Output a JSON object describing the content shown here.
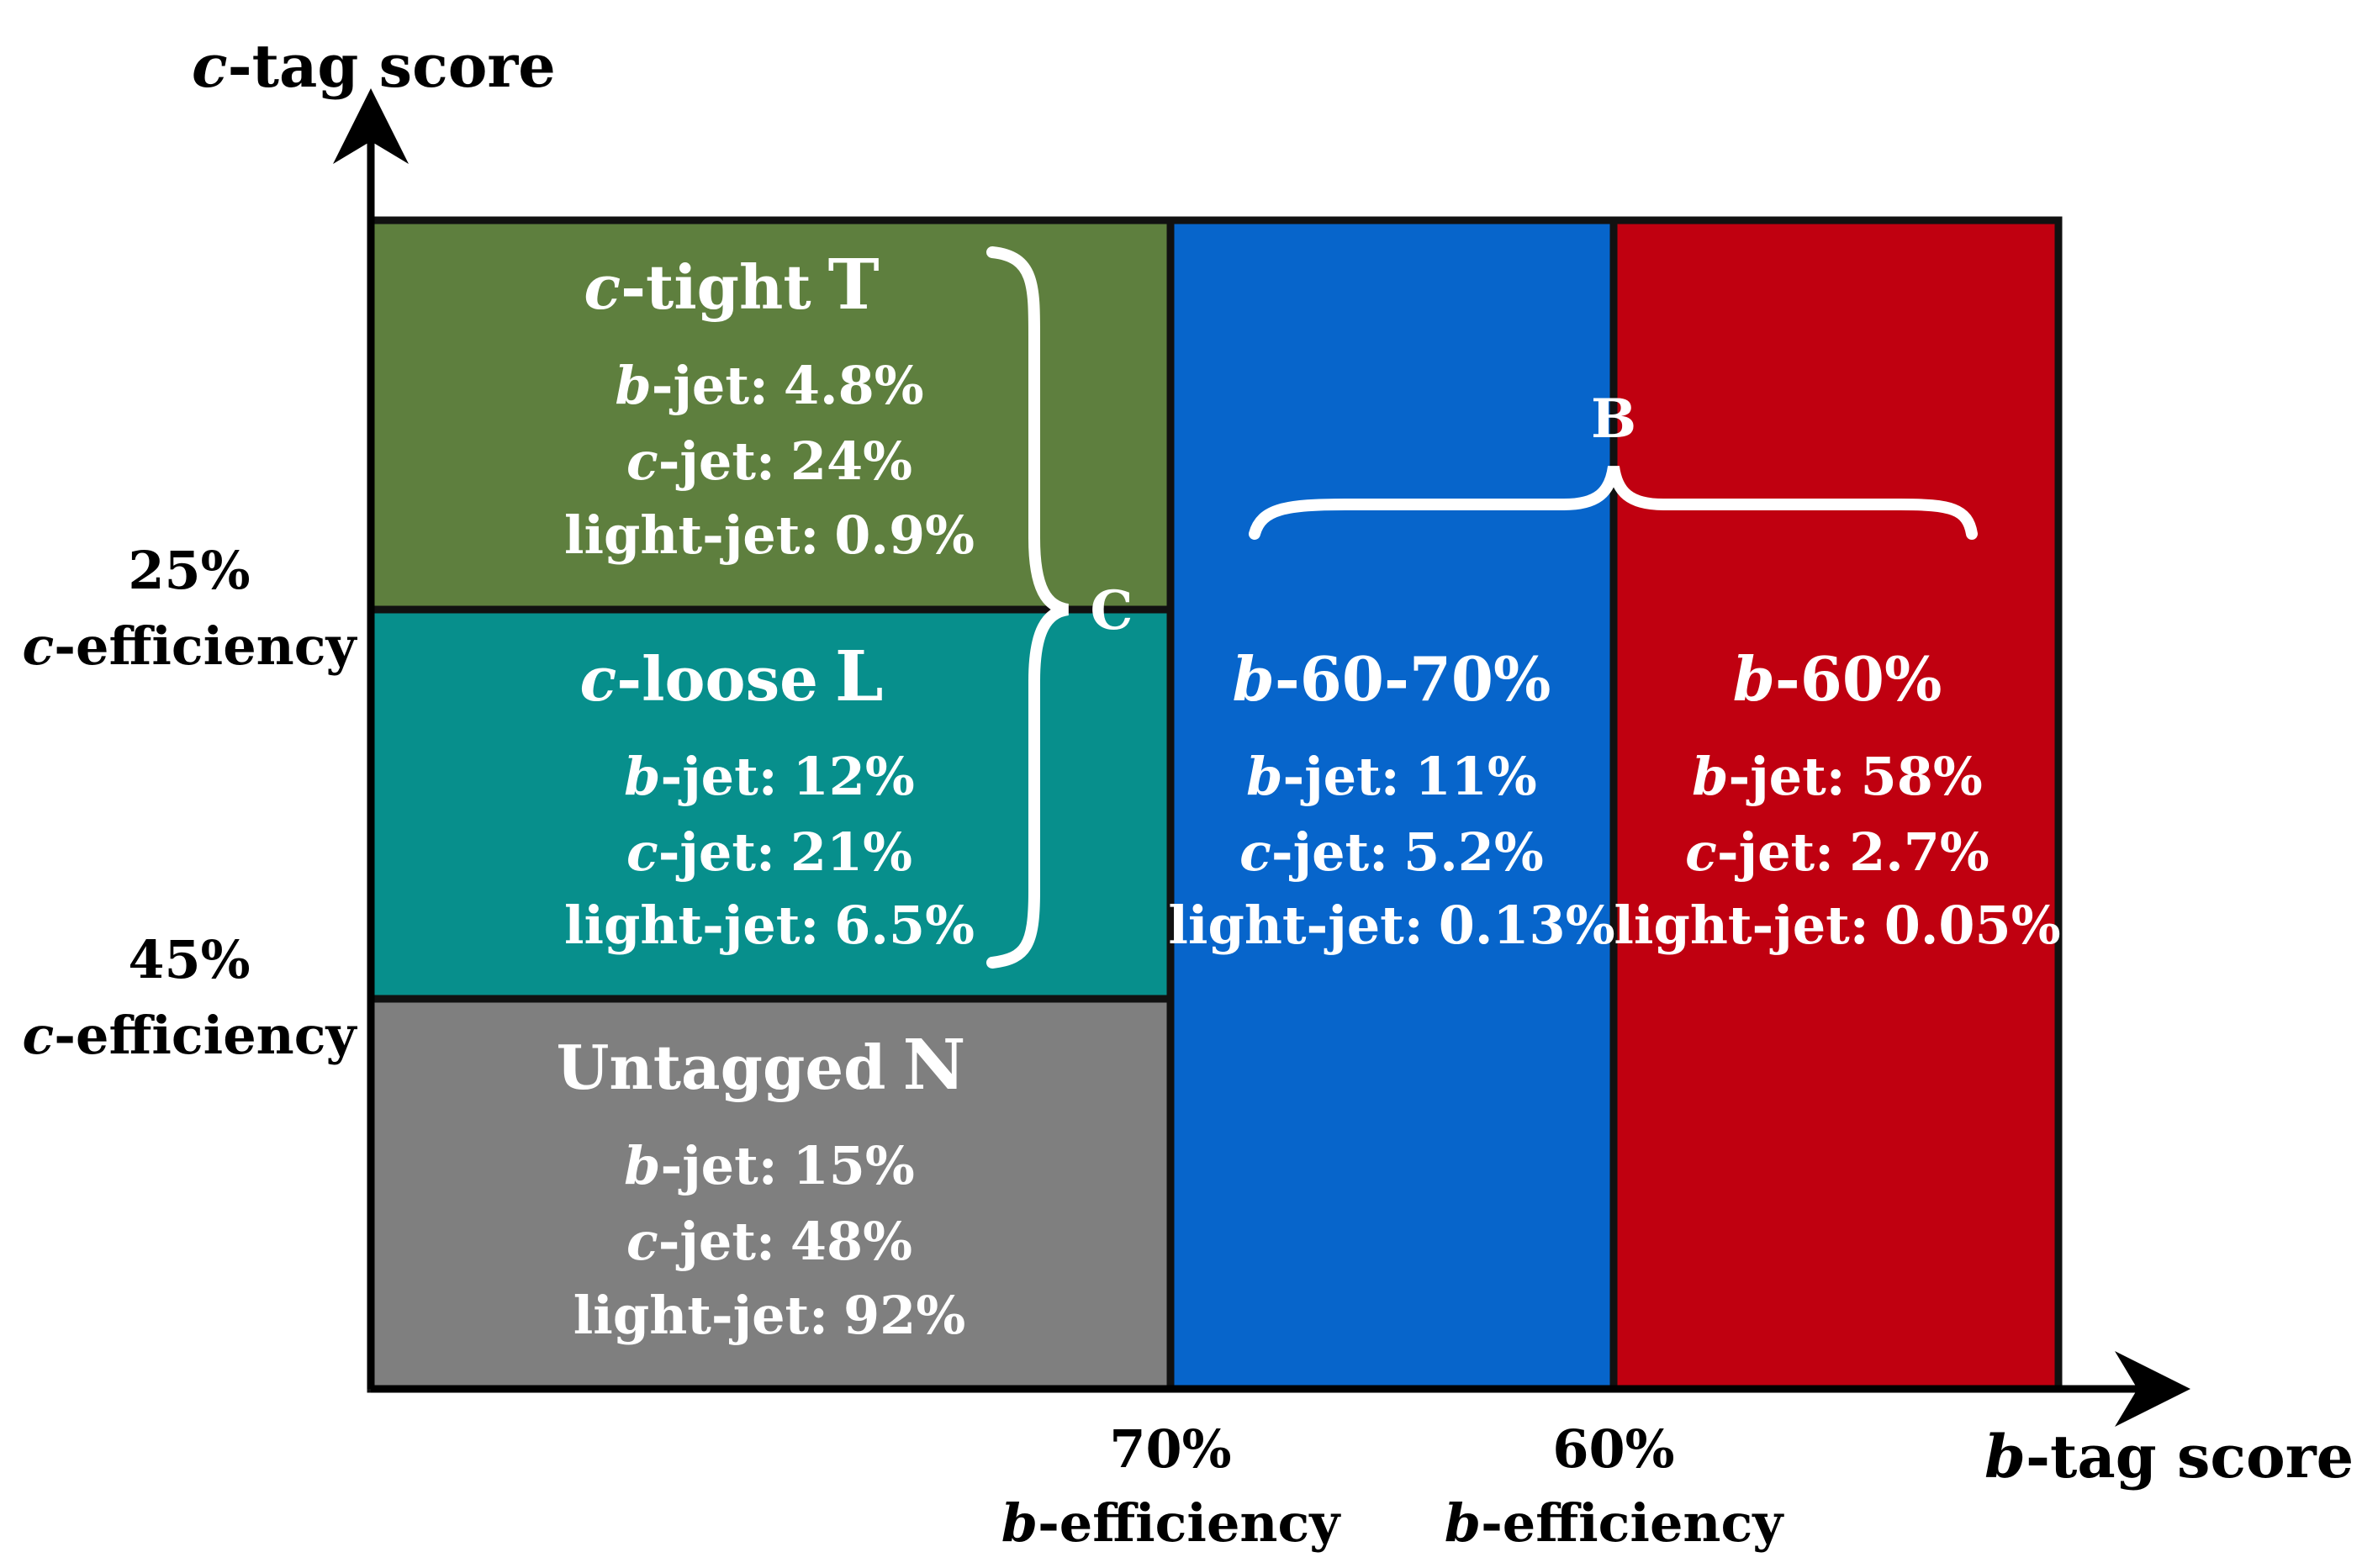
{
  "axes": {
    "y_label": {
      "prefix": "c",
      "rest": "-tag score"
    },
    "x_label": {
      "prefix": "b",
      "rest": "-tag score"
    }
  },
  "y_thresholds": [
    {
      "percent": "25%",
      "prefix": "c",
      "rest": "-efficiency"
    },
    {
      "percent": "45%",
      "prefix": "c",
      "rest": "-efficiency"
    }
  ],
  "x_thresholds": [
    {
      "percent": "70%",
      "prefix": "b",
      "rest": "-efficiency"
    },
    {
      "percent": "60%",
      "prefix": "b",
      "rest": "-efficiency"
    }
  ],
  "regions": {
    "tight": {
      "color": "#5e7f3e",
      "title_prefix": "c",
      "title_rest": "-tight",
      "letter": "T",
      "rows": [
        {
          "prefix": "b",
          "rest": "-jet:",
          "value": "4.8%"
        },
        {
          "prefix": "c",
          "rest": "-jet:",
          "value": "24%"
        },
        {
          "prefix": "",
          "rest": "light-jet:",
          "value": "0.9%"
        }
      ]
    },
    "loose": {
      "color": "#078f8c",
      "title_prefix": "c",
      "title_rest": "-loose",
      "letter": "L",
      "rows": [
        {
          "prefix": "b",
          "rest": "-jet:",
          "value": "12%"
        },
        {
          "prefix": "c",
          "rest": "-jet:",
          "value": "21%"
        },
        {
          "prefix": "",
          "rest": "light-jet:",
          "value": "6.5%"
        }
      ]
    },
    "untagged": {
      "color": "#7f7f7f",
      "title_prefix": "",
      "title_rest": "Untagged",
      "letter": "N",
      "rows": [
        {
          "prefix": "b",
          "rest": "-jet:",
          "value": "15%"
        },
        {
          "prefix": "c",
          "rest": "-jet:",
          "value": "48%"
        },
        {
          "prefix": "",
          "rest": "light-jet:",
          "value": "92%"
        }
      ]
    },
    "b6070": {
      "color": "#0765cb",
      "title_prefix": "b",
      "title_rest": "-60-70%",
      "letter": "",
      "rows": [
        {
          "prefix": "b",
          "rest": "-jet:",
          "value": "11%"
        },
        {
          "prefix": "c",
          "rest": "-jet:",
          "value": "5.2%"
        },
        {
          "prefix": "",
          "rest": "light-jet:",
          "value": "0.13%"
        }
      ]
    },
    "b60": {
      "color": "#c00010",
      "title_prefix": "b",
      "title_rest": "-60%",
      "letter": "",
      "rows": [
        {
          "prefix": "b",
          "rest": "-jet:",
          "value": "58%"
        },
        {
          "prefix": "c",
          "rest": "-jet:",
          "value": "2.7%"
        },
        {
          "prefix": "",
          "rest": "light-jet:",
          "value": "0.05%"
        }
      ]
    }
  },
  "braces": {
    "c_letter": "C",
    "b_letter": "B"
  }
}
